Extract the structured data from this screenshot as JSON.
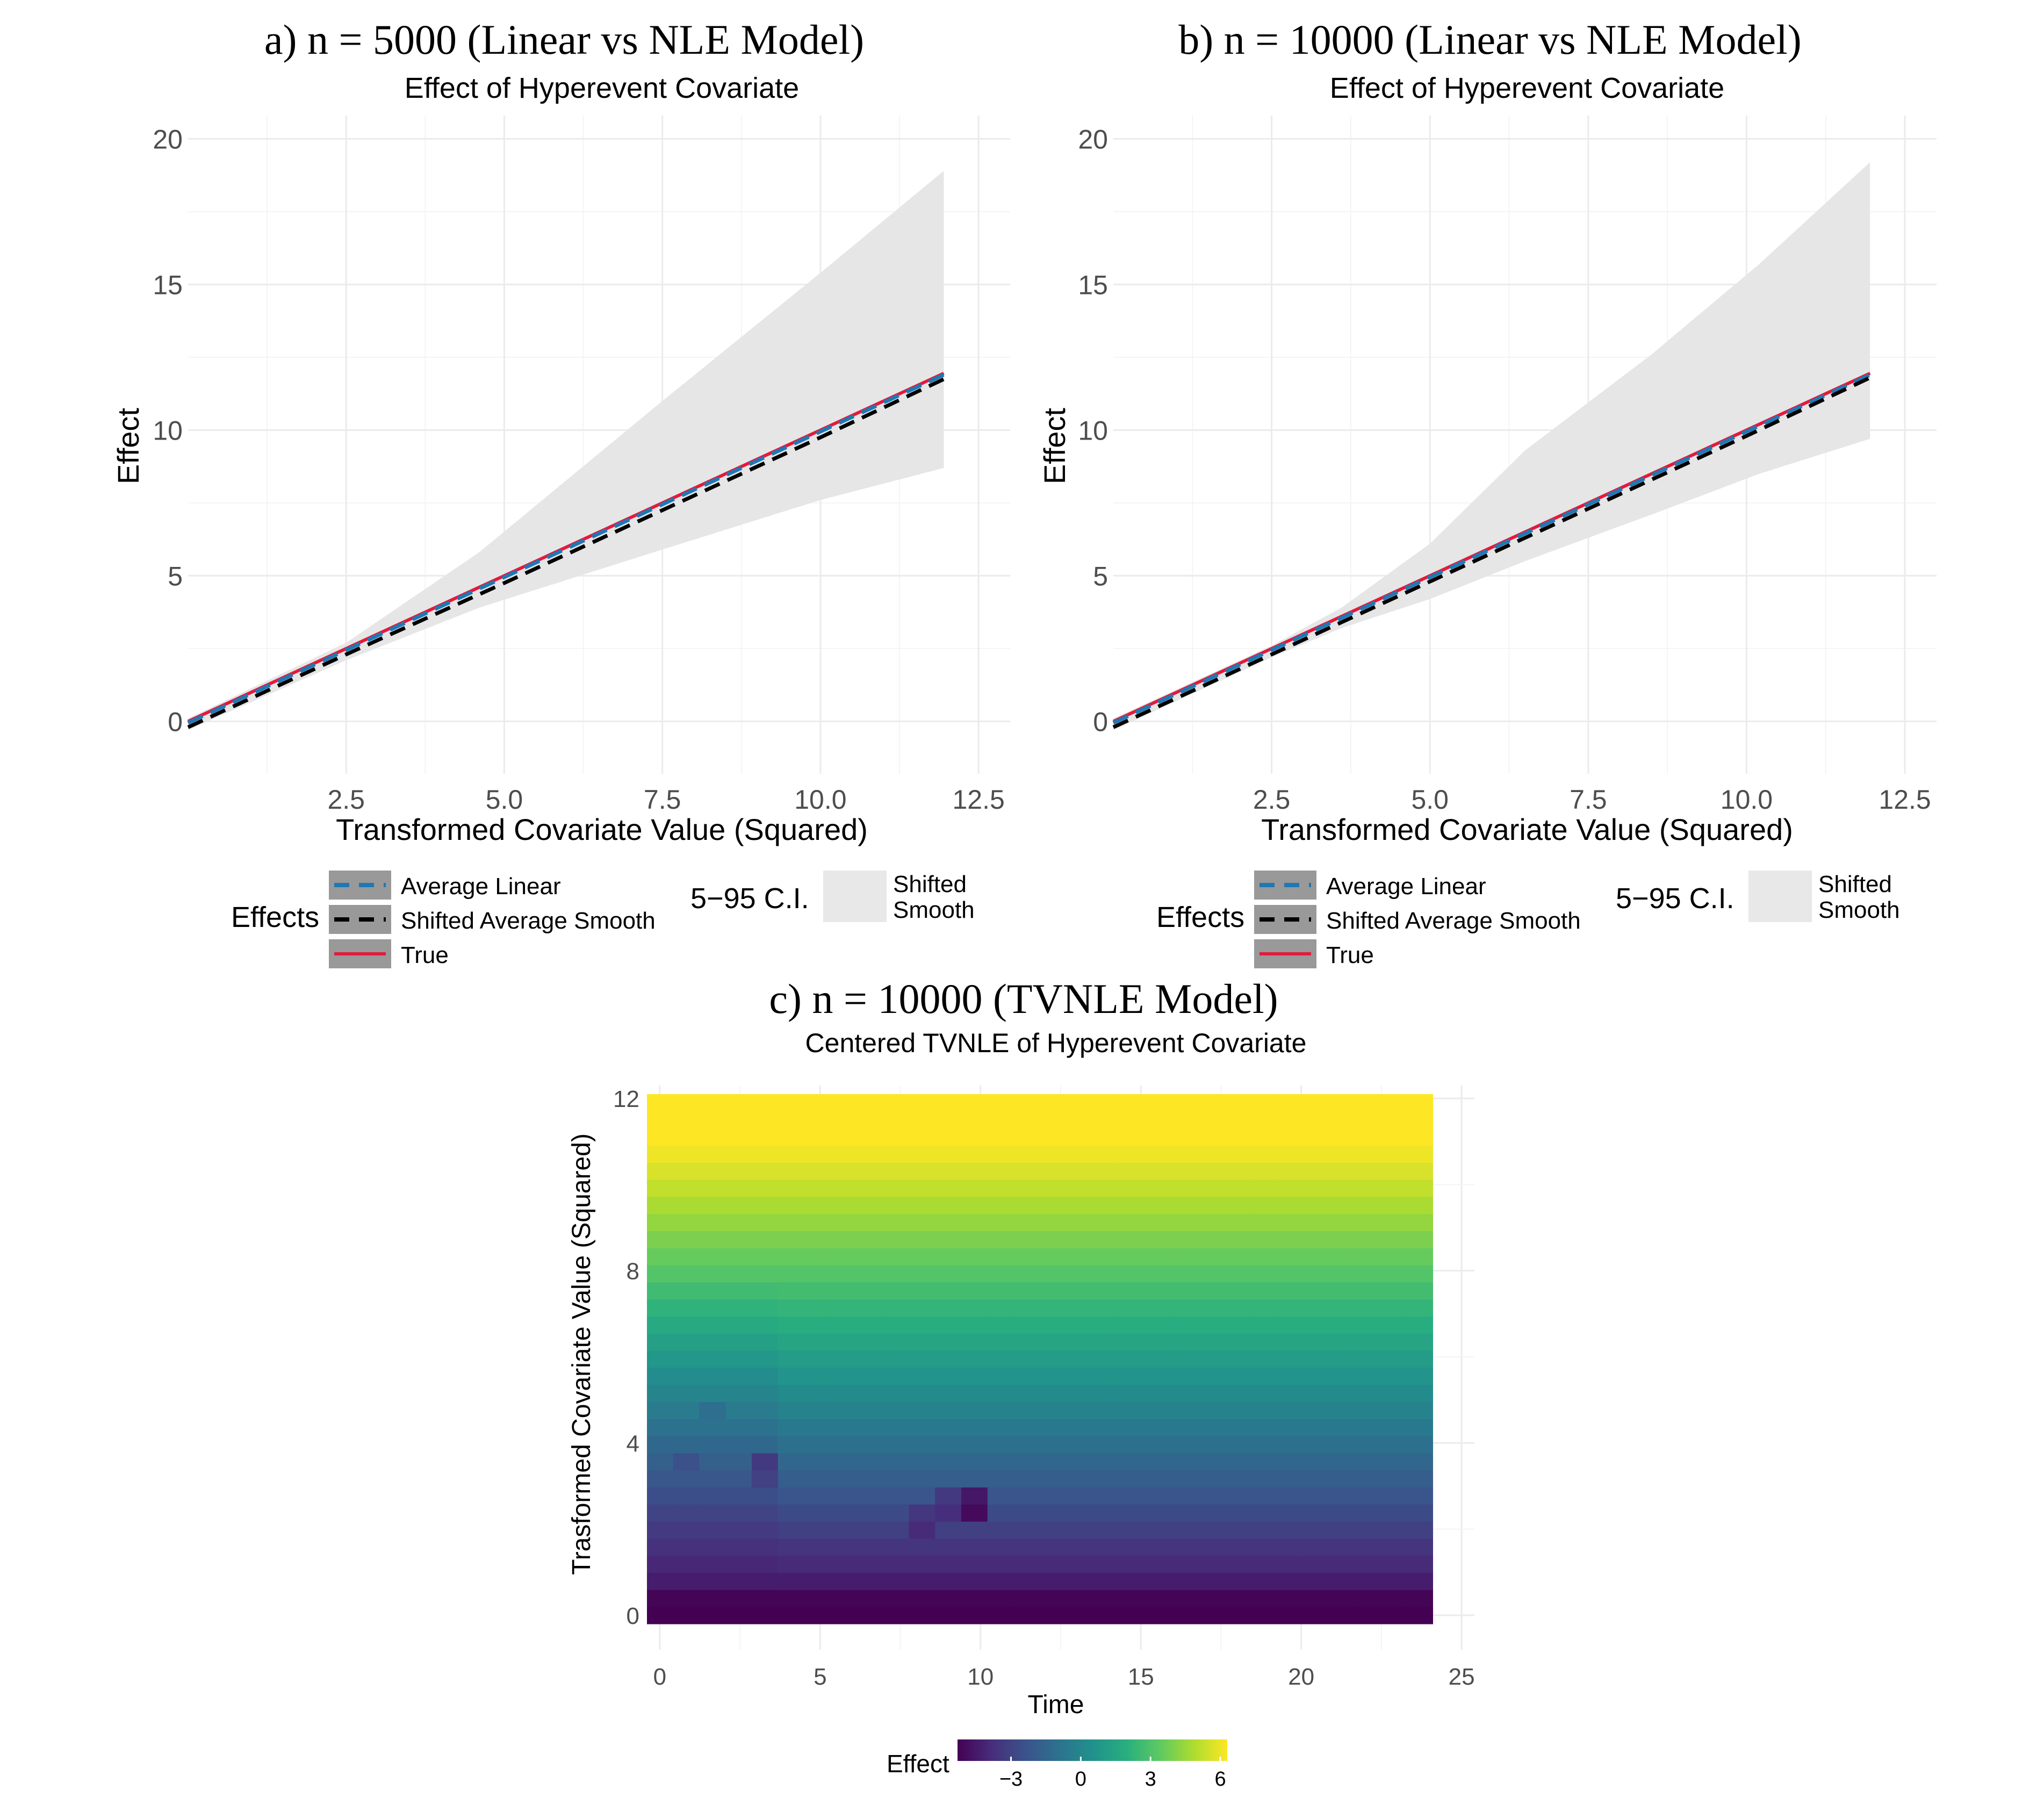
{
  "chart_data": [
    {
      "id": "a",
      "type": "line",
      "panel_title": "a) n = 5000 (Linear vs NLE Model)",
      "subtitle": "Effect of Hyperevent Covariate",
      "xlabel": "Transformed Covariate Value (Squared)",
      "ylabel": "Effect",
      "xlim": [
        0,
        13
      ],
      "ylim": [
        -1.8,
        20.8
      ],
      "x_ticks": [
        2.5,
        5.0,
        7.5,
        10.0,
        12.5
      ],
      "x_tick_labels": [
        "2.5",
        "5.0",
        "7.5",
        "10.0",
        "12.5"
      ],
      "y_ticks": [
        0,
        5,
        10,
        15,
        20
      ],
      "y_tick_labels": [
        "0",
        "5",
        "10",
        "15",
        "20"
      ],
      "series": [
        {
          "name": "Average Linear",
          "color": "#1f78b4",
          "dash": "dashed",
          "x": [
            0,
            11.95
          ],
          "y": [
            -0.05,
            11.9
          ]
        },
        {
          "name": "Shifted Average Smooth",
          "color": "#000000",
          "dash": "dashed",
          "x": [
            0,
            2.5,
            5,
            7.5,
            10,
            11.95
          ],
          "y": [
            -0.2,
            2.3,
            4.75,
            7.25,
            9.75,
            11.75
          ]
        },
        {
          "name": "True",
          "color": "#e31a3c",
          "dash": "solid",
          "x": [
            0,
            11.95
          ],
          "y": [
            0,
            11.95
          ]
        }
      ],
      "ribbon": {
        "name": "Shifted Smooth",
        "x": [
          0,
          2.5,
          4.6,
          7.5,
          10.0,
          11.95
        ],
        "lower": [
          -0.3,
          2.1,
          3.9,
          5.9,
          7.6,
          8.7
        ],
        "upper": [
          0.1,
          2.7,
          5.8,
          11.0,
          15.4,
          18.9
        ]
      },
      "legend": {
        "title": "Effects",
        "entries": [
          "Average Linear",
          "Shifted Average Smooth",
          "True"
        ],
        "ci_title": "5−95 C.I.",
        "ci_label_line1": "Shifted",
        "ci_label_line2": "Smooth"
      }
    },
    {
      "id": "b",
      "type": "line",
      "panel_title": "b) n = 10000 (Linear vs NLE Model)",
      "subtitle": "Effect of Hyperevent Covariate",
      "xlabel": "Transformed Covariate Value (Squared)",
      "ylabel": "Effect",
      "xlim": [
        0,
        13
      ],
      "ylim": [
        -1.8,
        20.8
      ],
      "x_ticks": [
        2.5,
        5.0,
        7.5,
        10.0,
        12.5
      ],
      "x_tick_labels": [
        "2.5",
        "5.0",
        "7.5",
        "10.0",
        "12.5"
      ],
      "y_ticks": [
        0,
        5,
        10,
        15,
        20
      ],
      "y_tick_labels": [
        "0",
        "5",
        "10",
        "15",
        "20"
      ],
      "series": [
        {
          "name": "Average Linear",
          "color": "#1f78b4",
          "dash": "dashed",
          "x": [
            0,
            11.95
          ],
          "y": [
            -0.05,
            11.9
          ]
        },
        {
          "name": "Shifted Average Smooth",
          "color": "#000000",
          "dash": "dashed",
          "x": [
            0,
            2.5,
            5,
            7.5,
            10,
            11.95
          ],
          "y": [
            -0.2,
            2.3,
            4.8,
            7.3,
            9.8,
            11.8
          ]
        },
        {
          "name": "True",
          "color": "#e31a3c",
          "dash": "solid",
          "x": [
            0,
            11.95
          ],
          "y": [
            0,
            11.95
          ]
        }
      ],
      "ribbon": {
        "name": "Shifted Smooth",
        "x": [
          0,
          2.5,
          3.6,
          5.0,
          6.5,
          8.5,
          10.2,
          11.95
        ],
        "lower": [
          -0.3,
          2.2,
          3.2,
          4.2,
          5.5,
          7.1,
          8.5,
          9.7
        ],
        "upper": [
          0.1,
          2.6,
          3.9,
          6.1,
          9.3,
          12.6,
          15.7,
          19.2
        ]
      },
      "legend": {
        "title": "Effects",
        "entries": [
          "Average Linear",
          "Shifted Average Smooth",
          "True"
        ],
        "ci_title": "5−95 C.I.",
        "ci_label_line1": "Shifted",
        "ci_label_line2": "Smooth"
      }
    },
    {
      "id": "c",
      "type": "heatmap",
      "panel_title": "c) n = 10000 (TVNLE Model)",
      "subtitle": "Centered TVNLE of Hyperevent Covariate",
      "xlabel": "Time",
      "ylabel": "Trasformed Covariate Value (Squared)",
      "xlim": [
        -0.4,
        25.4
      ],
      "ylim": [
        -0.8,
        12.3
      ],
      "x_ticks": [
        0,
        5,
        10,
        15,
        20,
        25
      ],
      "x_tick_labels": [
        "0",
        "5",
        "10",
        "15",
        "20",
        "25"
      ],
      "y_ticks": [
        0,
        4,
        8,
        12
      ],
      "y_tick_labels": [
        "0",
        "4",
        "8",
        "12"
      ],
      "grid_x_range": [
        -0.4,
        24.1
      ],
      "grid_y_range": [
        -0.2,
        12.1
      ],
      "n_time_bins": 30,
      "n_value_bins": 31,
      "effect_range": [
        -5.3,
        7.0
      ],
      "model": "effect ≈ 1.05·v − 5.2, darker pockets near t≈1–3 at v≈4 and t≈8–10 at v≈2.5",
      "anomalies": [
        {
          "t": 3.3,
          "v": 3.65,
          "delta": -1.6
        },
        {
          "t": 3.3,
          "v": 3.25,
          "delta": -0.9
        },
        {
          "t": 0.8,
          "v": 3.6,
          "delta": -0.7
        },
        {
          "t": 1.8,
          "v": 4.8,
          "delta": -0.6
        },
        {
          "t": 9.2,
          "v": 2.65,
          "delta": -1.1
        },
        {
          "t": 10.0,
          "v": 2.65,
          "delta": -1.2
        },
        {
          "t": 8.2,
          "v": 2.2,
          "delta": -0.8
        }
      ],
      "colorbar": {
        "title": "Effect",
        "ticks": [
          -3,
          0,
          3,
          6
        ],
        "tick_labels": [
          "−3",
          "0",
          "3",
          "6"
        ],
        "range": [
          -5.3,
          6.3
        ],
        "colors": [
          "#440154",
          "#472d7b",
          "#3b528b",
          "#2c728e",
          "#21918c",
          "#28ae80",
          "#5ec962",
          "#addc30",
          "#fde725"
        ]
      }
    }
  ]
}
